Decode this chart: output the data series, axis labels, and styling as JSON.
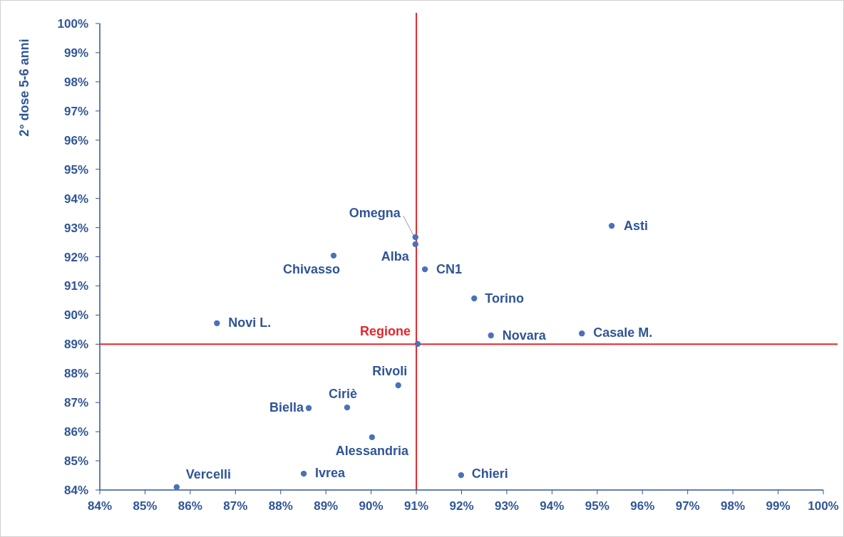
{
  "chart_data": {
    "type": "scatter",
    "ylabel": "2° dose 5-6 anni",
    "x": [
      85.7,
      88.51,
      91.99,
      90.02,
      88.62,
      89.47,
      90.6,
      91.03,
      86.59,
      92.65,
      94.66,
      92.28,
      91.19,
      89.17,
      90.98,
      90.98,
      95.32
    ],
    "series": [
      {
        "color": "#4a72b8",
        "values": [
          84.1,
          84.56,
          84.51,
          85.81,
          86.81,
          86.83,
          87.59,
          89.01,
          89.72,
          89.3,
          89.37,
          90.57,
          91.57,
          92.04,
          92.43,
          92.67,
          93.06
        ]
      }
    ],
    "xlim": [
      84,
      100
    ],
    "ylim": [
      84,
      100
    ],
    "xticks": [
      {
        "value": 84,
        "label": "84%"
      },
      {
        "value": 85,
        "label": "85%"
      },
      {
        "value": 86,
        "label": "86%"
      },
      {
        "value": 87,
        "label": "87%"
      },
      {
        "value": 88,
        "label": "88%"
      },
      {
        "value": 89,
        "label": "89%"
      },
      {
        "value": 90,
        "label": "90%"
      },
      {
        "value": 91,
        "label": "91%"
      },
      {
        "value": 92,
        "label": "92%"
      },
      {
        "value": 93,
        "label": "93%"
      },
      {
        "value": 94,
        "label": "94%"
      },
      {
        "value": 95,
        "label": "95%"
      },
      {
        "value": 96,
        "label": "96%"
      },
      {
        "value": 97,
        "label": "97%"
      },
      {
        "value": 98,
        "label": "98%"
      },
      {
        "value": 99,
        "label": "99%"
      },
      {
        "value": 100,
        "label": "100%"
      }
    ],
    "yticks": [
      {
        "value": 84,
        "label": "84%"
      },
      {
        "value": 85,
        "label": "85%"
      },
      {
        "value": 86,
        "label": "86%"
      },
      {
        "value": 87,
        "label": "87%"
      },
      {
        "value": 88,
        "label": "88%"
      },
      {
        "value": 89,
        "label": "89%"
      },
      {
        "value": 90,
        "label": "90%"
      },
      {
        "value": 91,
        "label": "91%"
      },
      {
        "value": 92,
        "label": "92%"
      },
      {
        "value": 93,
        "label": "93%"
      },
      {
        "value": 94,
        "label": "94%"
      },
      {
        "value": 95,
        "label": "95%"
      },
      {
        "value": 96,
        "label": "96%"
      },
      {
        "value": 97,
        "label": "97%"
      },
      {
        "value": 98,
        "label": "98%"
      },
      {
        "value": 99,
        "label": "99%"
      },
      {
        "value": 100,
        "label": "100%"
      }
    ],
    "marker": "circle",
    "ref_lines": [
      {
        "axis": "y",
        "value": 89,
        "label": "Regione",
        "color": "#e3262b"
      },
      {
        "axis": "x",
        "value": 91,
        "color": "#e3262b"
      }
    ],
    "annotations": [
      {
        "text": "Vercelli",
        "x": 85.7,
        "y": 84.1
      },
      {
        "text": "Ivrea",
        "x": 88.51,
        "y": 84.56
      },
      {
        "text": "Chieri",
        "x": 91.99,
        "y": 84.51
      },
      {
        "text": "Alessandria",
        "x": 90.02,
        "y": 85.81
      },
      {
        "text": "Biella",
        "x": 88.62,
        "y": 86.81
      },
      {
        "text": "Ciriè",
        "x": 89.47,
        "y": 86.83
      },
      {
        "text": "Rivoli",
        "x": 90.6,
        "y": 87.59
      },
      {
        "text": "Novi L.",
        "x": 86.59,
        "y": 89.72
      },
      {
        "text": "Novara",
        "x": 92.65,
        "y": 89.3
      },
      {
        "text": "Casale M.",
        "x": 94.66,
        "y": 89.37
      },
      {
        "text": "Torino",
        "x": 92.28,
        "y": 90.57
      },
      {
        "text": "CN1",
        "x": 91.19,
        "y": 91.57
      },
      {
        "text": "Chivasso",
        "x": 89.17,
        "y": 92.04
      },
      {
        "text": "Alba",
        "x": 90.98,
        "y": 92.43
      },
      {
        "text": "Omegna",
        "x": 90.98,
        "y": 92.67
      },
      {
        "text": "Asti",
        "x": 95.32,
        "y": 93.06
      }
    ]
  }
}
